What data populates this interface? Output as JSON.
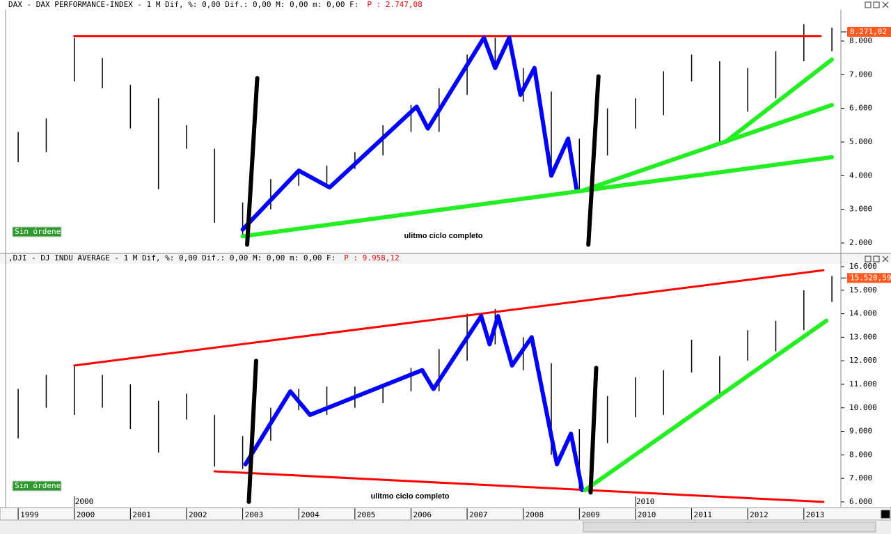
{
  "chart_data": [
    {
      "type": "hilo",
      "header": "DAX - DAX PERFORMANCE-INDEX -  1 M Dif, %: 0,00 Dif.: 0,00 M: 0,00 m: 0,00 F:",
      "header_price": "P : 2.747,08",
      "badge": "Sin órdenes",
      "annotation": "ulitmo ciclo completo",
      "last_price": {
        "value": 8271.02,
        "label": "8.271,02"
      },
      "xlim": [
        1998.8,
        2013.66
      ],
      "ylim": [
        1710,
        8930
      ],
      "yticks": [
        {
          "value": 2000,
          "label": "2.000"
        },
        {
          "value": 3000,
          "label": "3.000"
        },
        {
          "value": 4000,
          "label": "4.000"
        },
        {
          "value": 5000,
          "label": "5.000"
        },
        {
          "value": 6000,
          "label": "6.000"
        },
        {
          "value": 7000,
          "label": "7.000"
        },
        {
          "value": 8000,
          "label": "8.000"
        }
      ],
      "x": [
        1999.0,
        1999.5,
        2000.0,
        2000.5,
        2001.0,
        2001.5,
        2002.0,
        2002.5,
        2003.0,
        2003.5,
        2004.0,
        2004.5,
        2005.0,
        2005.5,
        2006.0,
        2006.5,
        2007.0,
        2007.5,
        2008.0,
        2008.5,
        2009.0,
        2009.5,
        2010.0,
        2010.5,
        2011.0,
        2011.5,
        2012.0,
        2012.5,
        2013.0,
        2013.5
      ],
      "low": [
        4400,
        4700,
        6800,
        6600,
        5400,
        3600,
        4800,
        2600,
        2200,
        3000,
        3700,
        3700,
        4200,
        4600,
        5300,
        5300,
        6400,
        7200,
        6200,
        4000,
        3600,
        4600,
        5400,
        5800,
        6800,
        5000,
        5900,
        6300,
        7400,
        7700
      ],
      "high": [
        5300,
        5700,
        8100,
        7500,
        6700,
        6300,
        5500,
        4800,
        3200,
        3900,
        4200,
        4300,
        4700,
        5500,
        6100,
        6600,
        7600,
        8100,
        7200,
        6500,
        5100,
        6000,
        6300,
        7100,
        7600,
        7400,
        7200,
        7700,
        8500,
        8400
      ],
      "series": [
        {
          "color": "#ff0000",
          "x": [
            2000.0,
            2013.3
          ],
          "values": [
            8150,
            8150
          ]
        },
        {
          "color": "#0000ff",
          "x": [
            2003.0,
            2004.0,
            2004.55,
            2006.1,
            2006.3,
            2007.3,
            2007.5,
            2007.75,
            2007.95,
            2008.2,
            2008.5,
            2008.8,
            2008.95
          ],
          "values": [
            2400,
            4150,
            3650,
            6050,
            5400,
            8100,
            7200,
            8100,
            6400,
            7200,
            4000,
            5100,
            3600
          ]
        },
        {
          "color": "#22ee22",
          "x": [
            2003.0,
            2009.05,
            null,
            2009.05,
            2013.5,
            null,
            2009.05,
            2013.5,
            null,
            2011.6,
            2013.5
          ],
          "values": [
            2200,
            3550,
            null,
            3550,
            4550,
            null,
            3550,
            6100,
            null,
            5000,
            7450
          ]
        },
        {
          "color": "#000000",
          "x": [
            2003.08,
            2003.26,
            null,
            2009.16,
            2009.34
          ],
          "values": [
            1950,
            6900,
            null,
            1950,
            6950
          ]
        }
      ]
    },
    {
      "type": "hilo",
      "header": ",DJI - DJ INDU AVERAGE -  1 M Dif, %: 0,00 Dif.: 0,00 M: 0,00 m: 0,00 F:",
      "header_price": "P : 9.958,12",
      "badge": "Sin órdenes",
      "annotation": "ulitmo ciclo completo",
      "last_price": {
        "value": 15520.59,
        "label": "15.520,59"
      },
      "xlim": [
        1998.8,
        2013.66
      ],
      "ylim": [
        5790,
        16120
      ],
      "xticks": [
        1999,
        2000,
        2001,
        2002,
        2003,
        2004,
        2005,
        2006,
        2007,
        2008,
        2009,
        2010,
        2011,
        2012,
        2013
      ],
      "era_marks": [
        2000,
        2010
      ],
      "yticks": [
        {
          "value": 6000,
          "label": "6.000"
        },
        {
          "value": 7000,
          "label": "7.000"
        },
        {
          "value": 8000,
          "label": "8.000"
        },
        {
          "value": 9000,
          "label": "9.000"
        },
        {
          "value": 10000,
          "label": "10.000"
        },
        {
          "value": 11000,
          "label": "11.000"
        },
        {
          "value": 12000,
          "label": "12.000"
        },
        {
          "value": 13000,
          "label": "13.000"
        },
        {
          "value": 14000,
          "label": "14.000"
        },
        {
          "value": 15000,
          "label": "15.000"
        },
        {
          "value": 16000,
          "label": "16.000"
        }
      ],
      "x": [
        1999.0,
        1999.5,
        2000.0,
        2000.5,
        2001.0,
        2001.5,
        2002.0,
        2002.5,
        2003.0,
        2003.5,
        2004.0,
        2004.5,
        2005.0,
        2005.5,
        2006.0,
        2006.5,
        2007.0,
        2007.5,
        2008.0,
        2008.5,
        2009.0,
        2009.5,
        2010.0,
        2010.5,
        2011.0,
        2011.5,
        2012.0,
        2012.5,
        2013.0,
        2013.5
      ],
      "low": [
        8700,
        10000,
        9700,
        10000,
        9100,
        8100,
        9500,
        7500,
        7400,
        8600,
        9900,
        9700,
        10000,
        10200,
        10700,
        10700,
        12000,
        12700,
        11600,
        8000,
        6500,
        8500,
        9600,
        9700,
        11500,
        10400,
        12000,
        12400,
        13300,
        14500
      ],
      "high": [
        10800,
        11400,
        11800,
        11400,
        11000,
        10300,
        10600,
        9700,
        8800,
        10000,
        10800,
        10900,
        10900,
        11000,
        11700,
        12500,
        14000,
        14200,
        13000,
        11900,
        9100,
        10500,
        11300,
        11600,
        12900,
        12200,
        13300,
        13700,
        15000,
        15600
      ],
      "series": [
        {
          "color": "#ff0000",
          "x": [
            2000.0,
            2013.35,
            null,
            2002.5,
            2013.35
          ],
          "values": [
            11800,
            15850,
            null,
            7300,
            6000
          ]
        },
        {
          "color": "#0000ff",
          "x": [
            2003.05,
            2003.85,
            2004.2,
            2006.2,
            2006.4,
            2007.25,
            2007.4,
            2007.55,
            2007.8,
            2008.15,
            2008.6,
            2008.85,
            2009.05
          ],
          "values": [
            7600,
            10700,
            9700,
            11600,
            10800,
            13900,
            12700,
            13900,
            11800,
            13000,
            7600,
            8900,
            6500
          ]
        },
        {
          "color": "#22ee22",
          "x": [
            2009.1,
            2013.4
          ],
          "values": [
            6500,
            13700
          ]
        },
        {
          "color": "#000000",
          "x": [
            2003.11,
            2003.24,
            null,
            2009.2,
            2009.3
          ],
          "values": [
            6000,
            12000,
            null,
            6400,
            11700
          ]
        }
      ]
    }
  ]
}
